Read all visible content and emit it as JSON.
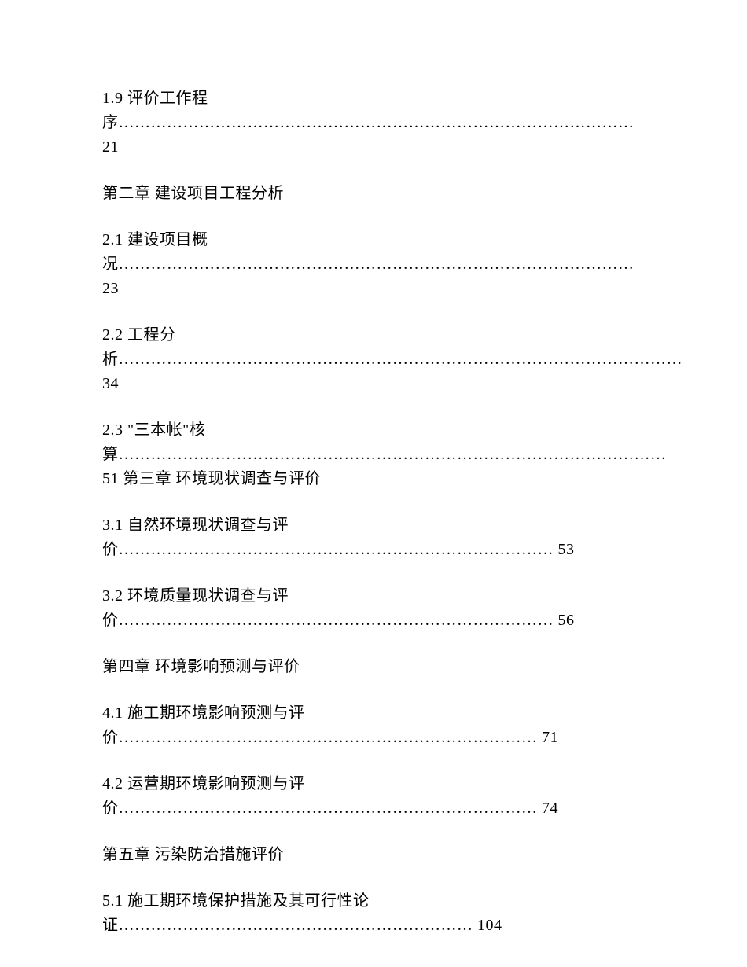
{
  "entries": [
    {
      "text": "1.9 评价工作程序…………………………………………………………………………………… 21"
    },
    {
      "text": "第二章 建设项目工程分析"
    },
    {
      "text": "2.1 建设项目概况…………………………………………………………………………………… 23"
    },
    {
      "text": "2.2 工程分析…………………………………………………………………………………………… 34"
    },
    {
      "text": "2.3 \"三本帐\"核算………………………………………………………………………………………… 51 第三章 环境现状调查与评价"
    },
    {
      "text": "3.1 自然环境现状调查与评价……………………………………………………………………… 53"
    },
    {
      "text": "3.2 环境质量现状调查与评价……………………………………………………………………… 56"
    },
    {
      "text": "第四章 环境影响预测与评价"
    },
    {
      "text": "4.1 施工期环境影响预测与评价…………………………………………………………………… 71"
    },
    {
      "text": "4.2 运营期环境影响预测与评价…………………………………………………………………… 74"
    },
    {
      "text": "第五章 污染防治措施评价"
    },
    {
      "text": "5.1 施工期环境保护措施及其可行性论证………………………………………………………… 104"
    }
  ]
}
